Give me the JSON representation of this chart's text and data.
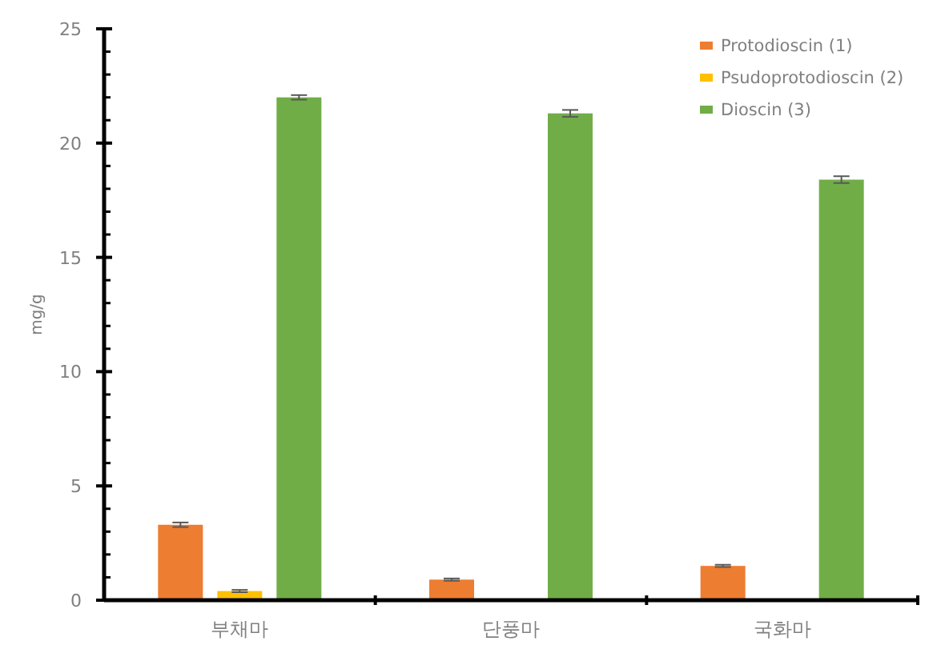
{
  "chart_data": {
    "type": "bar",
    "ylabel": "mg/g",
    "categories": [
      "부채마",
      "단풍마",
      "국화마"
    ],
    "series": [
      {
        "name": "Protodioscin (1)",
        "color": "#ed7d31",
        "values": [
          3.3,
          0.9,
          1.5
        ],
        "errors": [
          0.1,
          0.05,
          0.05
        ]
      },
      {
        "name": "Psudoprotodioscin (2)",
        "color": "#ffc000",
        "values": [
          0.4,
          null,
          null
        ],
        "errors": [
          0.05,
          null,
          null
        ]
      },
      {
        "name": "Dioscin (3)",
        "color": "#70ad47",
        "values": [
          22.0,
          21.3,
          18.4
        ],
        "errors": [
          0.1,
          0.15,
          0.15
        ]
      }
    ],
    "ylim": [
      0,
      25
    ],
    "yticks": [
      0,
      {
        "value": 1,
        "label": null
      },
      {
        "value": 2,
        "label": null
      },
      {
        "value": 3,
        "label": null
      },
      {
        "value": 4,
        "label": null
      },
      5,
      {
        "value": 6,
        "label": null
      },
      {
        "value": 7,
        "label": null
      },
      {
        "value": 8,
        "label": null
      },
      {
        "value": 9,
        "label": null
      },
      10,
      {
        "value": 11,
        "label": null
      },
      {
        "value": 12,
        "label": null
      },
      {
        "value": 13,
        "label": null
      },
      {
        "value": 14,
        "label": null
      },
      15,
      {
        "value": 16,
        "label": null
      },
      {
        "value": 17,
        "label": null
      },
      {
        "value": 18,
        "label": null
      },
      {
        "value": 19,
        "label": null
      },
      20,
      {
        "value": 21,
        "label": null
      },
      {
        "value": 22,
        "label": null
      },
      {
        "value": 23,
        "label": null
      },
      {
        "value": 24,
        "label": null
      },
      25
    ],
    "grid": false,
    "legend": "top right"
  }
}
